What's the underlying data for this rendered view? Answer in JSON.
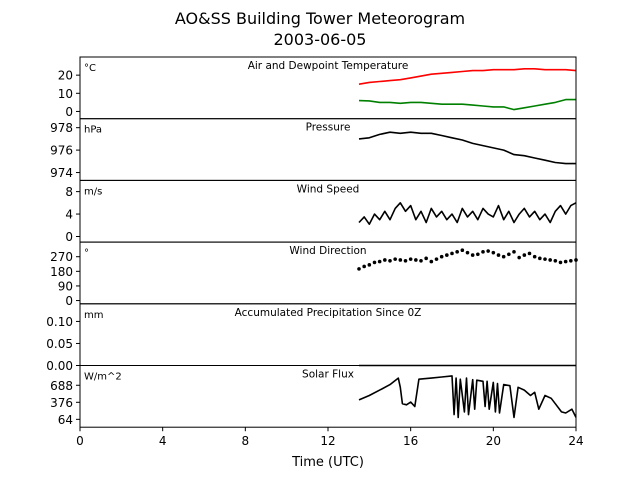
{
  "chart_data": {
    "type": "line",
    "title": "AO&SS Building Tower Meteorogram",
    "subtitle": "2003-06-05",
    "xlabel": "Time (UTC)",
    "xlim": [
      0,
      24
    ],
    "xticks": [
      0,
      4,
      8,
      12,
      16,
      20,
      24
    ],
    "panels": [
      {
        "id": "temp",
        "title": "Air and Dewpoint Temperature",
        "unit": "°C",
        "ylim": [
          -4,
          30
        ],
        "yticks": [
          0,
          10,
          20
        ],
        "series": [
          {
            "color": "#ff0000",
            "x": [
              13.5,
              14,
              14.5,
              15,
              15.5,
              16,
              16.5,
              17,
              17.5,
              18,
              18.5,
              19,
              19.5,
              20,
              20.5,
              21,
              21.5,
              22,
              22.5,
              23,
              23.5,
              24
            ],
            "y": [
              15,
              16,
              16.5,
              17,
              17.5,
              18.5,
              19.5,
              20.5,
              21,
              21.5,
              22,
              22.5,
              22.5,
              23,
              23,
              23,
              23.5,
              23.5,
              23,
              23,
              23,
              22.5
            ]
          },
          {
            "color": "#008000",
            "x": [
              13.5,
              14,
              14.5,
              15,
              15.5,
              16,
              16.5,
              17,
              17.5,
              18,
              18.5,
              19,
              19.5,
              20,
              20.5,
              21,
              21.5,
              22,
              22.5,
              23,
              23.5,
              24
            ],
            "y": [
              6,
              5.8,
              5,
              5,
              4.5,
              5,
              5,
              4.5,
              4,
              4,
              4,
              3.5,
              3,
              2.5,
              2.5,
              1,
              2,
              3,
              4,
              5,
              6.5,
              6.5
            ]
          }
        ]
      },
      {
        "id": "pressure",
        "title": "Pressure",
        "unit": "hPa",
        "ylim": [
          973.3,
          978.8
        ],
        "yticks": [
          974,
          976,
          978
        ],
        "series": [
          {
            "color": "#000000",
            "x": [
              13.5,
              14,
              14.5,
              15,
              15.5,
              16,
              16.5,
              17,
              17.5,
              18,
              18.5,
              19,
              19.5,
              20,
              20.5,
              21,
              21.5,
              22,
              22.5,
              23,
              23.5,
              24
            ],
            "y": [
              977.0,
              977.1,
              977.4,
              977.6,
              977.5,
              977.6,
              977.5,
              977.5,
              977.3,
              977.1,
              976.9,
              976.6,
              976.4,
              976.2,
              976.0,
              975.6,
              975.5,
              975.3,
              975.1,
              974.9,
              974.8,
              974.8
            ]
          }
        ]
      },
      {
        "id": "wspd",
        "title": "Wind Speed",
        "unit": "m/s",
        "ylim": [
          -1,
          10
        ],
        "yticks": [
          0,
          4,
          8
        ],
        "series": [
          {
            "color": "#000000",
            "x": [
              13.5,
              13.75,
              14,
              14.25,
              14.5,
              14.75,
              15,
              15.25,
              15.5,
              15.75,
              16,
              16.25,
              16.5,
              16.75,
              17,
              17.25,
              17.5,
              17.75,
              18,
              18.25,
              18.5,
              18.75,
              19,
              19.25,
              19.5,
              19.75,
              20,
              20.25,
              20.5,
              20.75,
              21,
              21.25,
              21.5,
              21.75,
              22,
              22.25,
              22.5,
              22.75,
              23,
              23.25,
              23.5,
              23.75,
              24
            ],
            "y": [
              2.5,
              3.5,
              2.2,
              4,
              3,
              4.5,
              3,
              5,
              6,
              4.5,
              5.5,
              3,
              4.5,
              2.5,
              5,
              3.5,
              4.5,
              3,
              4,
              2.5,
              5,
              3.5,
              4.5,
              3,
              5,
              4,
              3.5,
              5.5,
              3,
              4.5,
              2.5,
              4,
              5,
              3.5,
              4.5,
              3,
              4,
              2.5,
              4.5,
              5.5,
              4,
              5.5,
              6
            ]
          }
        ]
      },
      {
        "id": "wdir",
        "title": "Wind Direction",
        "unit": "°",
        "ylim": [
          -20,
          360
        ],
        "yticks": [
          0,
          90,
          180,
          270
        ],
        "series": [
          {
            "color": "#000000",
            "style": "points",
            "x": [
              13.5,
              13.75,
              14,
              14.25,
              14.5,
              14.75,
              15,
              15.25,
              15.5,
              15.75,
              16,
              16.25,
              16.5,
              16.75,
              17,
              17.25,
              17.5,
              17.75,
              18,
              18.25,
              18.5,
              18.75,
              19,
              19.25,
              19.5,
              19.75,
              20,
              20.25,
              20.5,
              20.75,
              21,
              21.25,
              21.5,
              21.75,
              22,
              22.25,
              22.5,
              22.75,
              23,
              23.25,
              23.5,
              23.75,
              24
            ],
            "y": [
              195,
              210,
              220,
              235,
              240,
              250,
              245,
              255,
              250,
              245,
              255,
              250,
              245,
              260,
              240,
              255,
              270,
              280,
              290,
              300,
              310,
              295,
              280,
              285,
              300,
              305,
              295,
              280,
              270,
              285,
              300,
              265,
              280,
              290,
              270,
              260,
              255,
              250,
              245,
              235,
              240,
              245,
              250
            ]
          }
        ]
      },
      {
        "id": "precip",
        "title": "Accumulated Precipitation Since 0Z",
        "unit": "mm",
        "ylim": [
          0,
          0.14
        ],
        "yticks": [
          0.0,
          0.05,
          0.1
        ],
        "series": [
          {
            "color": "#000000",
            "x": [
              13.5,
              24
            ],
            "y": [
              0,
              0
            ]
          }
        ]
      },
      {
        "id": "solar",
        "title": "Solar Flux",
        "unit": "W/m^2",
        "ylim": [
          -80,
          1050
        ],
        "yticks": [
          64,
          376,
          688
        ],
        "series": [
          {
            "color": "#000000",
            "x": [
              13.5,
              14,
              14.5,
              15,
              15.4,
              15.5,
              15.6,
              15.8,
              16,
              16.2,
              16.4,
              17,
              17.5,
              18,
              18.1,
              18.2,
              18.3,
              18.4,
              18.6,
              18.7,
              18.8,
              19,
              19.1,
              19.2,
              19.5,
              19.6,
              19.7,
              19.8,
              20,
              20.1,
              20.2,
              20.3,
              20.5,
              20.8,
              21,
              21.2,
              21.5,
              21.8,
              22,
              22.2,
              22.5,
              22.8,
              23,
              23.3,
              23.5,
              23.8,
              24
            ],
            "y": [
              420,
              500,
              600,
              700,
              820,
              650,
              350,
              330,
              380,
              300,
              800,
              820,
              840,
              860,
              150,
              820,
              100,
              800,
              200,
              820,
              150,
              790,
              250,
              780,
              760,
              300,
              760,
              250,
              740,
              200,
              720,
              180,
              700,
              680,
              100,
              650,
              600,
              500,
              560,
              250,
              500,
              450,
              350,
              200,
              180,
              250,
              100
            ]
          }
        ]
      }
    ]
  }
}
